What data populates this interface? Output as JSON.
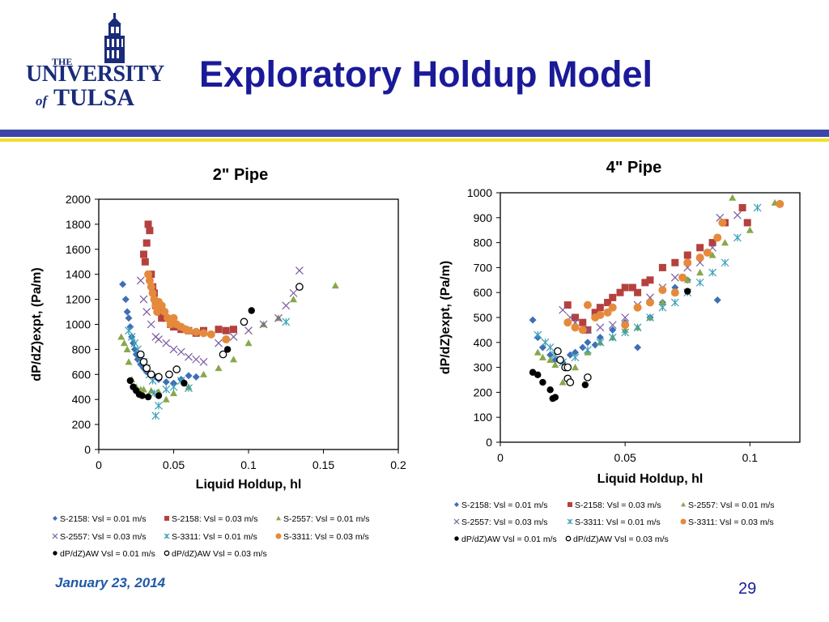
{
  "logo": {
    "line1": "THE",
    "line2": "UNIVERSITY",
    "line3": "of",
    "line4": "TULSA"
  },
  "slide": {
    "title": "Exploratory Holdup Model"
  },
  "footer": {
    "date": "January 23, 2014",
    "page": "29"
  },
  "colors": {
    "title": "#1a1a99",
    "rule_blue": "#3b46a8",
    "rule_yellow": "#f0e02a"
  },
  "chart_data": [
    {
      "type": "scatter",
      "title": "2\" Pipe",
      "xlabel": "Liquid Holdup, hl",
      "ylabel": "dP/dZ)expt, (Pa/m)",
      "xlim": [
        0,
        0.2
      ],
      "ylim": [
        0,
        2000
      ],
      "xticks": [
        0,
        0.05,
        0.1,
        0.15,
        0.2
      ],
      "xtick_labels": [
        "0",
        "0.05",
        "0.1",
        "0.15",
        "0.2"
      ],
      "yticks": [
        0,
        200,
        400,
        600,
        800,
        1000,
        1200,
        1400,
        1600,
        1800,
        2000
      ],
      "ytick_labels": [
        "0",
        "200",
        "400",
        "600",
        "800",
        "1000",
        "1200",
        "1400",
        "1600",
        "1800",
        "2000"
      ],
      "grid": false,
      "legend_position": "bottom",
      "series": [
        {
          "name": "S-2158: Vsl = 0.01 m/s",
          "marker": "diamond",
          "color": "#3e6fb6",
          "x": [
            0.016,
            0.018,
            0.019,
            0.02,
            0.021,
            0.022,
            0.023,
            0.024,
            0.025,
            0.026,
            0.028,
            0.03,
            0.032,
            0.035,
            0.038,
            0.04,
            0.045,
            0.05,
            0.055,
            0.06,
            0.065
          ],
          "y": [
            1320,
            1200,
            1100,
            1050,
            980,
            900,
            850,
            800,
            760,
            720,
            680,
            650,
            620,
            600,
            580,
            560,
            540,
            530,
            560,
            590,
            580
          ]
        },
        {
          "name": "S-2158: Vsl = 0.03 m/s",
          "marker": "square",
          "color": "#b5413f",
          "x": [
            0.03,
            0.031,
            0.032,
            0.033,
            0.034,
            0.035,
            0.036,
            0.037,
            0.038,
            0.04,
            0.042,
            0.045,
            0.048,
            0.05,
            0.055,
            0.06,
            0.065,
            0.07,
            0.08,
            0.085,
            0.09
          ],
          "y": [
            1560,
            1500,
            1650,
            1800,
            1750,
            1400,
            1300,
            1250,
            1150,
            1100,
            1050,
            1050,
            1000,
            980,
            960,
            950,
            930,
            950,
            960,
            950,
            960
          ]
        },
        {
          "name": "S-2557: Vsl = 0.01 m/s",
          "marker": "triangle",
          "color": "#86a84a",
          "x": [
            0.015,
            0.017,
            0.019,
            0.02,
            0.022,
            0.025,
            0.028,
            0.03,
            0.035,
            0.04,
            0.045,
            0.05,
            0.06,
            0.07,
            0.08,
            0.09,
            0.1,
            0.11,
            0.12,
            0.13,
            0.158
          ],
          "y": [
            900,
            850,
            800,
            700,
            560,
            500,
            480,
            480,
            470,
            460,
            400,
            450,
            500,
            600,
            650,
            720,
            850,
            1000,
            1050,
            1200,
            1310
          ]
        },
        {
          "name": "S-2557: Vsl = 0.03 m/s",
          "marker": "x",
          "color": "#7a5aa0",
          "x": [
            0.028,
            0.03,
            0.032,
            0.035,
            0.038,
            0.04,
            0.045,
            0.05,
            0.055,
            0.06,
            0.065,
            0.07,
            0.08,
            0.09,
            0.1,
            0.11,
            0.12,
            0.125,
            0.13,
            0.134
          ],
          "y": [
            1350,
            1200,
            1100,
            1000,
            900,
            880,
            850,
            800,
            780,
            740,
            720,
            700,
            850,
            900,
            950,
            1000,
            1050,
            1150,
            1250,
            1430
          ]
        },
        {
          "name": "S-3311: Vsl = 0.01 m/s",
          "marker": "asterisk",
          "color": "#3aa0b8",
          "x": [
            0.02,
            0.022,
            0.024,
            0.026,
            0.028,
            0.03,
            0.032,
            0.034,
            0.036,
            0.037,
            0.038,
            0.04,
            0.045,
            0.05,
            0.055,
            0.06,
            0.125
          ],
          "y": [
            950,
            900,
            850,
            800,
            720,
            700,
            650,
            600,
            550,
            450,
            270,
            350,
            480,
            500,
            550,
            490,
            1020
          ]
        },
        {
          "name": "S-3311: Vsl = 0.03 m/s",
          "marker": "circle",
          "color": "#e58a3c",
          "x": [
            0.033,
            0.034,
            0.035,
            0.036,
            0.037,
            0.038,
            0.039,
            0.04,
            0.042,
            0.044,
            0.046,
            0.048,
            0.05,
            0.052,
            0.055,
            0.058,
            0.06,
            0.065,
            0.07,
            0.075,
            0.085
          ],
          "y": [
            1400,
            1350,
            1300,
            1250,
            1200,
            1150,
            1100,
            1180,
            1150,
            1100,
            1050,
            1000,
            1050,
            1000,
            980,
            960,
            950,
            940,
            930,
            920,
            880
          ]
        },
        {
          "name": "dP/dZ)AW Vsl = 0.01 m/s",
          "marker": "filled-circle",
          "color": "#000000",
          "x": [
            0.021,
            0.023,
            0.025,
            0.027,
            0.029,
            0.033,
            0.04,
            0.057,
            0.086,
            0.102
          ],
          "y": [
            550,
            500,
            470,
            440,
            430,
            420,
            430,
            530,
            800,
            1110
          ]
        },
        {
          "name": "dP/dZ)AW Vsl = 0.03 m/s",
          "marker": "open-circle",
          "color": "#000000",
          "x": [
            0.028,
            0.03,
            0.032,
            0.035,
            0.04,
            0.047,
            0.052,
            0.083,
            0.097,
            0.134
          ],
          "y": [
            760,
            700,
            650,
            600,
            580,
            600,
            640,
            760,
            1020,
            1300
          ]
        }
      ]
    },
    {
      "type": "scatter",
      "title": "4\" Pipe",
      "xlabel": "Liquid Holdup, hl",
      "ylabel": "dP/dZ)expt, (Pa/m)",
      "xlim": [
        0,
        0.12
      ],
      "ylim": [
        0,
        1000
      ],
      "xticks": [
        0,
        0.05,
        0.1
      ],
      "xtick_labels": [
        "0",
        "0.05",
        "0.1"
      ],
      "yticks": [
        0,
        100,
        200,
        300,
        400,
        500,
        600,
        700,
        800,
        900,
        1000
      ],
      "ytick_labels": [
        "0",
        "100",
        "200",
        "300",
        "400",
        "500",
        "600",
        "700",
        "800",
        "900",
        "1000"
      ],
      "grid": false,
      "legend_position": "bottom",
      "series": [
        {
          "name": "S-2158: Vsl = 0.01 m/s",
          "marker": "diamond",
          "color": "#3e6fb6",
          "x": [
            0.013,
            0.015,
            0.017,
            0.02,
            0.022,
            0.025,
            0.028,
            0.03,
            0.033,
            0.035,
            0.038,
            0.04,
            0.045,
            0.05,
            0.055,
            0.06,
            0.065,
            0.07,
            0.075,
            0.087
          ],
          "y": [
            490,
            420,
            380,
            350,
            330,
            320,
            350,
            360,
            380,
            400,
            390,
            420,
            450,
            480,
            380,
            500,
            560,
            620,
            650,
            570
          ]
        },
        {
          "name": "S-2158: Vsl = 0.03 m/s",
          "marker": "square",
          "color": "#b5413f",
          "x": [
            0.027,
            0.03,
            0.033,
            0.035,
            0.038,
            0.04,
            0.043,
            0.045,
            0.048,
            0.05,
            0.053,
            0.055,
            0.058,
            0.06,
            0.065,
            0.07,
            0.075,
            0.08,
            0.085,
            0.09,
            0.097,
            0.099
          ],
          "y": [
            550,
            500,
            480,
            450,
            520,
            540,
            560,
            580,
            600,
            620,
            620,
            600,
            640,
            650,
            700,
            720,
            750,
            780,
            800,
            880,
            940,
            880
          ]
        },
        {
          "name": "S-2557: Vsl = 0.01 m/s",
          "marker": "triangle",
          "color": "#86a84a",
          "x": [
            0.015,
            0.017,
            0.02,
            0.022,
            0.025,
            0.028,
            0.03,
            0.035,
            0.04,
            0.045,
            0.05,
            0.055,
            0.06,
            0.065,
            0.07,
            0.075,
            0.08,
            0.085,
            0.09,
            0.093,
            0.1,
            0.11
          ],
          "y": [
            360,
            340,
            330,
            310,
            240,
            250,
            300,
            360,
            400,
            420,
            450,
            460,
            500,
            560,
            600,
            650,
            680,
            750,
            800,
            980,
            850,
            960
          ]
        },
        {
          "name": "S-2557: Vsl = 0.03 m/s",
          "marker": "x",
          "color": "#7a5aa0",
          "x": [
            0.025,
            0.028,
            0.03,
            0.035,
            0.04,
            0.045,
            0.05,
            0.055,
            0.06,
            0.065,
            0.07,
            0.075,
            0.08,
            0.085,
            0.088,
            0.095
          ],
          "y": [
            530,
            500,
            480,
            450,
            460,
            470,
            500,
            550,
            580,
            620,
            660,
            700,
            720,
            780,
            900,
            910
          ]
        },
        {
          "name": "S-3311: Vsl = 0.01 m/s",
          "marker": "asterisk",
          "color": "#3aa0b8",
          "x": [
            0.015,
            0.018,
            0.02,
            0.022,
            0.025,
            0.03,
            0.035,
            0.04,
            0.045,
            0.05,
            0.055,
            0.06,
            0.065,
            0.07,
            0.075,
            0.08,
            0.085,
            0.09,
            0.095,
            0.103
          ],
          "y": [
            430,
            400,
            380,
            350,
            320,
            340,
            370,
            400,
            420,
            440,
            460,
            500,
            540,
            560,
            600,
            640,
            680,
            720,
            820,
            940
          ]
        },
        {
          "name": "S-3311: Vsl = 0.03 m/s",
          "marker": "circle",
          "color": "#e58a3c",
          "x": [
            0.027,
            0.03,
            0.033,
            0.035,
            0.038,
            0.04,
            0.043,
            0.045,
            0.05,
            0.055,
            0.06,
            0.065,
            0.07,
            0.073,
            0.075,
            0.08,
            0.083,
            0.087,
            0.089,
            0.112
          ],
          "y": [
            480,
            460,
            450,
            550,
            500,
            510,
            520,
            540,
            470,
            540,
            560,
            610,
            600,
            660,
            720,
            740,
            760,
            820,
            880,
            955
          ]
        },
        {
          "name": "dP/dZ)AW Vsl = 0.01 m/s",
          "marker": "filled-circle",
          "color": "#000000",
          "x": [
            0.013,
            0.015,
            0.017,
            0.02,
            0.021,
            0.022,
            0.034,
            0.075
          ],
          "y": [
            280,
            270,
            240,
            210,
            175,
            180,
            230,
            605
          ]
        },
        {
          "name": "dP/dZ)AW Vsl = 0.03 m/s",
          "marker": "open-circle",
          "color": "#000000",
          "x": [
            0.023,
            0.024,
            0.026,
            0.027,
            0.027,
            0.028,
            0.035
          ],
          "y": [
            365,
            330,
            300,
            300,
            255,
            240,
            260
          ]
        }
      ]
    }
  ]
}
